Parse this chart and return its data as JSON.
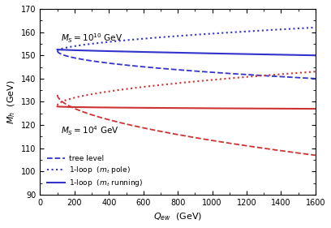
{
  "title": "",
  "xlabel": "Q_{ew}  (GeV)",
  "ylabel": "M_{h}  (GeV)",
  "xlim": [
    0,
    1600
  ],
  "ylim": [
    90,
    170
  ],
  "yticks": [
    90,
    100,
    110,
    120,
    130,
    140,
    150,
    160,
    170
  ],
  "xticks": [
    0,
    200,
    400,
    600,
    800,
    1000,
    1200,
    1400,
    1600
  ],
  "blue_color": "#3333cc",
  "red_color": "#cc3333",
  "label_MS10": "M_S = 10^{10} GeV",
  "label_MS4": "M_S = 10^4 GeV",
  "legend_entries": [
    "tree level",
    "1-loop  (m_t pole)",
    "1-loop  (m_t running)"
  ]
}
